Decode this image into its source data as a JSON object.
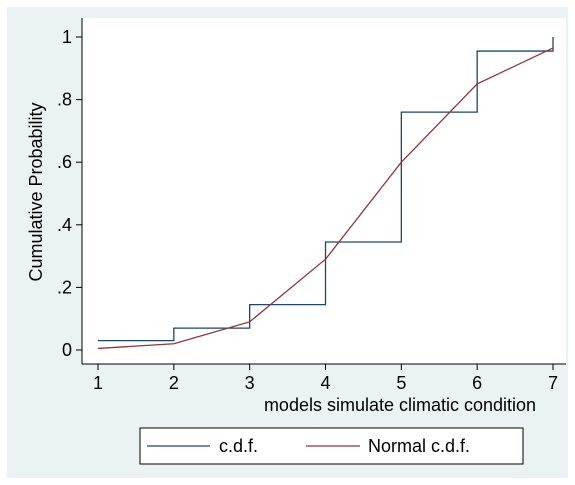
{
  "chart_data": {
    "type": "line",
    "title": "",
    "xlabel": "models simulate climatic condition",
    "ylabel": "Cumulative Probability",
    "xlim": [
      1,
      7
    ],
    "ylim": [
      0,
      1
    ],
    "x_ticks": [
      1,
      2,
      3,
      4,
      5,
      6,
      7
    ],
    "x_tick_labels": [
      "1",
      "2",
      "3",
      "4",
      "5",
      "6",
      "7"
    ],
    "y_ticks": [
      0,
      0.2,
      0.4,
      0.6,
      0.8,
      1
    ],
    "y_tick_labels": [
      "0",
      ".2",
      ".4",
      ".6",
      ".8",
      "1"
    ],
    "grid": false,
    "legend_position": "bottom",
    "series": [
      {
        "name": "c.d.f.",
        "style": "step",
        "color": "#1a476f",
        "x": [
          1,
          2,
          3,
          4,
          5,
          6,
          7
        ],
        "y": [
          0.03,
          0.07,
          0.145,
          0.345,
          0.76,
          0.955,
          1.0
        ]
      },
      {
        "name": "Normal c.d.f.",
        "style": "line",
        "color": "#90353b",
        "x": [
          1,
          2,
          3,
          4,
          5,
          6,
          7
        ],
        "y": [
          0.005,
          0.02,
          0.09,
          0.29,
          0.6,
          0.85,
          0.965
        ]
      }
    ]
  }
}
